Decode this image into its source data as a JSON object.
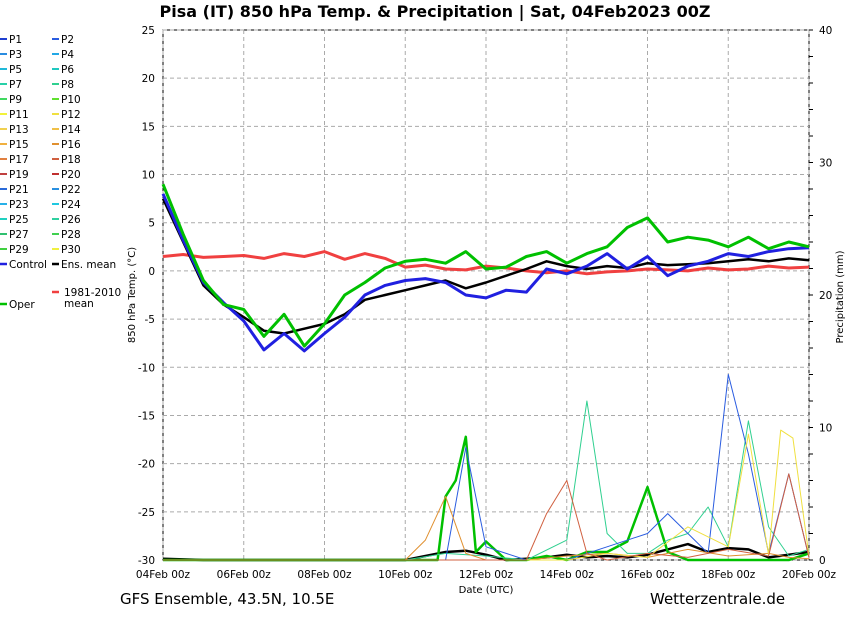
{
  "chart_data": {
    "type": "line",
    "title": "Pisa  (IT)  850 hPa Temp. & Precipitation | Sat, 04Feb2023 00Z",
    "footer_left": "GFS Ensemble, 43.5N, 10.5E",
    "footer_right": "Wetterzentrale.de",
    "xlabel": "Date (UTC)",
    "ylabel_left": "850 hPa Temp. (°C)",
    "ylabel_right": "Precipitation (mm)",
    "ylim_left": [
      -30,
      25
    ],
    "ylim_right": [
      0,
      40
    ],
    "xlim_days": [
      0,
      16
    ],
    "x_tick_days": [
      0,
      2,
      4,
      6,
      8,
      10,
      12,
      14,
      16
    ],
    "x_tick_labels": [
      "04Feb 00z",
      "06Feb 00z",
      "08Feb 00z",
      "10Feb 00z",
      "12Feb 00z",
      "14Feb 00z",
      "16Feb 00z",
      "18Feb 00z",
      "20Feb 00z"
    ],
    "y_ticks_left": [
      25,
      20,
      15,
      10,
      5,
      0,
      -5,
      -10,
      -15,
      -20,
      -25,
      -30
    ],
    "y_ticks_right": [
      40,
      30,
      20,
      10,
      0
    ],
    "grid": true,
    "legend_placement": "left",
    "legend": [
      {
        "label": "P1",
        "color": "#1f3fd0"
      },
      {
        "label": "P2",
        "color": "#2a5ce0"
      },
      {
        "label": "P3",
        "color": "#2a8ce0"
      },
      {
        "label": "P4",
        "color": "#22a8e6"
      },
      {
        "label": "P5",
        "color": "#20b8d8"
      },
      {
        "label": "P6",
        "color": "#20c8c0"
      },
      {
        "label": "P7",
        "color": "#28d0a8"
      },
      {
        "label": "P8",
        "color": "#30d090"
      },
      {
        "label": "P9",
        "color": "#40d860"
      },
      {
        "label": "P10",
        "color": "#60e030"
      },
      {
        "label": "P11",
        "color": "#f2f23a"
      },
      {
        "label": "P12",
        "color": "#f0e040"
      },
      {
        "label": "P13",
        "color": "#f0d050"
      },
      {
        "label": "P14",
        "color": "#f0c048"
      },
      {
        "label": "P15",
        "color": "#f0b040"
      },
      {
        "label": "P16",
        "color": "#e09030"
      },
      {
        "label": "P17",
        "color": "#e08040"
      },
      {
        "label": "P18",
        "color": "#d06040"
      },
      {
        "label": "P19",
        "color": "#c04040"
      },
      {
        "label": "P20",
        "color": "#c03030"
      },
      {
        "label": "P21",
        "color": "#2a6ad8"
      },
      {
        "label": "P22",
        "color": "#2a90e0"
      },
      {
        "label": "P23",
        "color": "#28b0e8"
      },
      {
        "label": "P24",
        "color": "#20c8e0"
      },
      {
        "label": "P25",
        "color": "#20d0c0"
      },
      {
        "label": "P26",
        "color": "#30d0a0"
      },
      {
        "label": "P27",
        "color": "#30c070"
      },
      {
        "label": "P28",
        "color": "#40d050"
      },
      {
        "label": "P29",
        "color": "#40d040"
      },
      {
        "label": "P30",
        "color": "#f0f040"
      },
      {
        "label": "Control",
        "color": "#2020e0"
      },
      {
        "label": "Ens. mean",
        "color": "#000000"
      },
      {
        "label": "Oper",
        "color": "#00c000"
      },
      {
        "label": "1981-2010\nmean",
        "color": "#f04040"
      }
    ],
    "series": [
      {
        "name": "1981-2010\nmean",
        "color": "#f04040",
        "x": [
          0,
          0.5,
          1,
          1.5,
          2,
          2.5,
          3,
          3.5,
          4,
          4.5,
          5,
          5.5,
          6,
          6.5,
          7,
          7.5,
          8,
          8.5,
          9,
          9.5,
          10,
          10.5,
          11,
          11.5,
          12,
          12.5,
          13,
          13.5,
          14,
          14.5,
          15,
          15.5,
          16
        ],
        "values": [
          1.5,
          1.7,
          1.4,
          1.5,
          1.6,
          1.3,
          1.8,
          1.5,
          2.0,
          1.2,
          1.8,
          1.3,
          0.4,
          0.6,
          0.2,
          0.1,
          0.5,
          0.3,
          0.0,
          -0.2,
          0.0,
          -0.3,
          -0.1,
          0.0,
          0.2,
          0.1,
          0.0,
          0.3,
          0.1,
          0.2,
          0.5,
          0.3,
          0.4
        ]
      },
      {
        "name": "Ens. mean",
        "color": "#000000",
        "x": [
          0,
          0.5,
          1,
          1.5,
          2,
          2.5,
          3,
          3.5,
          4,
          4.5,
          5,
          5.5,
          6,
          6.5,
          7,
          7.5,
          8,
          8.5,
          9,
          9.5,
          10,
          10.5,
          11,
          11.5,
          12,
          12.5,
          13,
          13.5,
          14,
          14.5,
          15,
          15.5,
          16
        ],
        "values": [
          7.5,
          3.0,
          -1.5,
          -3.5,
          -4.8,
          -6.2,
          -6.5,
          -6.0,
          -5.5,
          -4.5,
          -3.0,
          -2.5,
          -2.0,
          -1.5,
          -1.0,
          -1.8,
          -1.2,
          -0.5,
          0.2,
          1.0,
          0.5,
          0.2,
          0.5,
          0.3,
          0.8,
          0.6,
          0.7,
          0.8,
          1.0,
          1.2,
          1.0,
          1.3,
          1.1
        ]
      },
      {
        "name": "Control",
        "color": "#2020e0",
        "x": [
          0,
          0.5,
          1,
          1.5,
          2,
          2.5,
          3,
          3.5,
          4,
          4.5,
          5,
          5.5,
          6,
          6.5,
          7,
          7.5,
          8,
          8.5,
          9,
          9.5,
          10,
          10.5,
          11,
          11.5,
          12,
          12.5,
          13,
          13.5,
          14,
          14.5,
          15,
          15.5,
          16
        ],
        "values": [
          8.0,
          3.2,
          -1.2,
          -3.3,
          -5.2,
          -8.2,
          -6.5,
          -8.3,
          -6.5,
          -4.8,
          -2.5,
          -1.5,
          -1.0,
          -0.8,
          -1.2,
          -2.5,
          -2.8,
          -2.0,
          -2.2,
          0.2,
          -0.3,
          0.5,
          1.8,
          0.2,
          1.5,
          -0.5,
          0.5,
          1.0,
          1.8,
          1.5,
          2.0,
          2.3,
          2.4
        ]
      },
      {
        "name": "Oper",
        "color": "#00c000",
        "x": [
          0,
          0.5,
          1,
          1.5,
          2,
          2.5,
          3,
          3.5,
          4,
          4.5,
          5,
          5.5,
          6,
          6.5,
          7,
          7.5,
          8,
          8.5,
          9,
          9.5,
          10,
          10.5,
          11,
          11.5,
          12,
          12.5,
          13,
          13.5,
          14,
          14.5,
          15,
          15.5,
          16
        ],
        "values": [
          9.0,
          3.8,
          -1.0,
          -3.5,
          -4.0,
          -6.8,
          -4.5,
          -7.8,
          -5.5,
          -2.5,
          -1.2,
          0.3,
          1.0,
          1.2,
          0.8,
          2.0,
          0.2,
          0.4,
          1.5,
          2.0,
          0.8,
          1.8,
          2.5,
          4.5,
          5.5,
          3.0,
          3.5,
          3.2,
          2.5,
          3.5,
          2.3,
          3.0,
          2.5
        ]
      }
    ],
    "precipitation_series": [
      {
        "name": "Ens. mean",
        "color": "#000000",
        "x": [
          0,
          1,
          2,
          3,
          4,
          5,
          6,
          6.5,
          7,
          7.5,
          8,
          8.5,
          9,
          9.5,
          10,
          10.5,
          11,
          11.5,
          12,
          12.5,
          13,
          13.5,
          14,
          14.5,
          15,
          15.5,
          16
        ],
        "values": [
          0.1,
          0,
          0,
          0,
          0,
          0,
          0,
          0.3,
          0.6,
          0.7,
          0.4,
          0,
          0.1,
          0.2,
          0.4,
          0.2,
          0.3,
          0.2,
          0.4,
          0.8,
          1.2,
          0.6,
          0.9,
          0.8,
          0.2,
          0.4,
          0.6
        ]
      },
      {
        "name": "Oper",
        "color": "#00c000",
        "x": [
          0,
          1,
          2,
          3,
          4,
          5,
          6,
          6.5,
          6.8,
          7,
          7.25,
          7.5,
          7.75,
          8,
          8.5,
          9,
          9.5,
          10,
          10.5,
          11,
          11.5,
          12,
          12.5,
          13,
          13.5,
          14,
          14.5,
          15,
          15.5,
          16
        ],
        "values": [
          0,
          0,
          0,
          0,
          0,
          0,
          0,
          0,
          0,
          4.8,
          6.0,
          9.3,
          0.6,
          1.4,
          0,
          0,
          0.3,
          0,
          0.6,
          0.6,
          1.4,
          5.5,
          0.6,
          0,
          0,
          0,
          0,
          0,
          0,
          0.5
        ]
      },
      {
        "name": "P8",
        "color": "#30d090",
        "x": [
          0,
          6,
          7,
          8,
          9,
          10,
          10.5,
          11,
          11.5,
          12,
          12.5,
          13,
          13.5,
          14,
          14.5,
          15,
          15.5,
          16
        ],
        "values": [
          0,
          0,
          0.5,
          0.3,
          0,
          1.5,
          12.0,
          2.0,
          0.5,
          0.5,
          1.5,
          2.0,
          4.0,
          1.0,
          10.5,
          2.5,
          0.3,
          0.8
        ]
      },
      {
        "name": "P2",
        "color": "#2a5ce0",
        "x": [
          0,
          7,
          7.5,
          8,
          9,
          10,
          11,
          12,
          12.5,
          13,
          13.5,
          14,
          14.5,
          15,
          15.5,
          16
        ],
        "values": [
          0,
          0,
          8.5,
          1.0,
          0,
          0,
          1.0,
          2.0,
          3.5,
          2.0,
          0.5,
          14.0,
          8.0,
          0.5,
          6.5,
          0.2
        ]
      },
      {
        "name": "P16",
        "color": "#e09030",
        "x": [
          0,
          6,
          6.5,
          7,
          7.5,
          8,
          9,
          10,
          11,
          12,
          13,
          14,
          15,
          15.5,
          16
        ],
        "values": [
          0,
          0,
          1.5,
          4.8,
          0.5,
          0,
          0,
          0.3,
          0.5,
          0.2,
          0.8,
          0.3,
          0.5,
          0.2,
          0.1
        ]
      },
      {
        "name": "P12",
        "color": "#f0e040",
        "x": [
          0,
          10,
          11,
          12,
          13,
          14,
          14.5,
          15,
          15.3,
          15.6,
          16
        ],
        "values": [
          0,
          0,
          0.5,
          0.2,
          2.5,
          1.0,
          9.5,
          0.4,
          9.8,
          9.2,
          0.3
        ]
      },
      {
        "name": "P18",
        "color": "#d06040",
        "x": [
          0,
          9,
          9.5,
          10,
          10.5,
          11,
          12,
          13,
          14,
          15,
          15.5,
          16
        ],
        "values": [
          0,
          0,
          3.5,
          6.0,
          0.5,
          0,
          0.5,
          0.2,
          0.8,
          0.3,
          6.5,
          0.2
        ]
      }
    ]
  }
}
